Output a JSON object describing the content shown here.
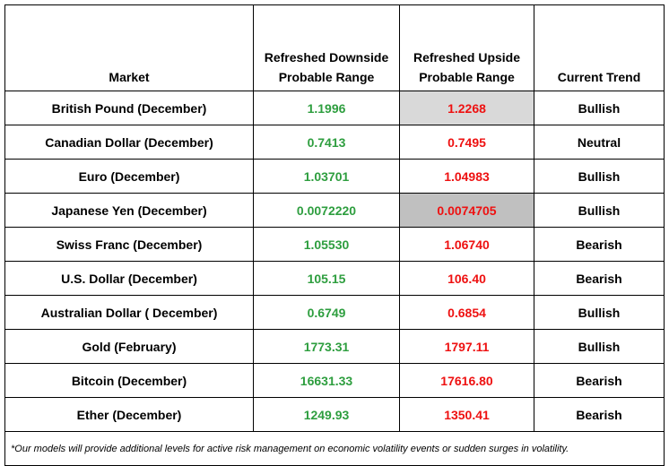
{
  "headers": {
    "market": "Market",
    "downside_line1": "Refreshed Downside",
    "downside_line2": "Probable Range",
    "upside_line1": "Refreshed Upside",
    "upside_line2": "Probable Range",
    "trend": "Current Trend"
  },
  "rows": [
    {
      "market": "British Pound (December)",
      "downside": "1.1996",
      "upside": "1.2268",
      "trend": "Bullish"
    },
    {
      "market": "Canadian Dollar (December)",
      "downside": "0.7413",
      "upside": "0.7495",
      "trend": "Neutral"
    },
    {
      "market": "Euro (December)",
      "downside": "1.03701",
      "upside": "1.04983",
      "trend": "Bullish"
    },
    {
      "market": "Japanese Yen (December)",
      "downside": "0.0072220",
      "upside": "0.0074705",
      "trend": "Bullish"
    },
    {
      "market": "Swiss Franc (December)",
      "downside": "1.05530",
      "upside": "1.06740",
      "trend": "Bearish"
    },
    {
      "market": "U.S. Dollar (December)",
      "downside": "105.15",
      "upside": "106.40",
      "trend": "Bearish"
    },
    {
      "market": "Australian Dollar ( December)",
      "downside": "0.6749",
      "upside": "0.6854",
      "trend": "Bullish"
    },
    {
      "market": "Gold (February)",
      "downside": "1773.31",
      "upside": "1797.11",
      "trend": "Bullish"
    },
    {
      "market": "Bitcoin (December)",
      "downside": "16631.33",
      "upside": "17616.80",
      "trend": "Bearish"
    },
    {
      "market": "Ether (December)",
      "downside": "1249.93",
      "upside": "1350.41",
      "trend": "Bearish"
    }
  ],
  "footnote": "*Our models will provide additional levels for active risk management on economic volatility events or sudden surges in volatility.",
  "colors": {
    "downside_text": "#2e9e3f",
    "upside_text": "#ee1111",
    "highlight_light": "#d9d9d9",
    "highlight_dark": "#c0c0c0"
  }
}
